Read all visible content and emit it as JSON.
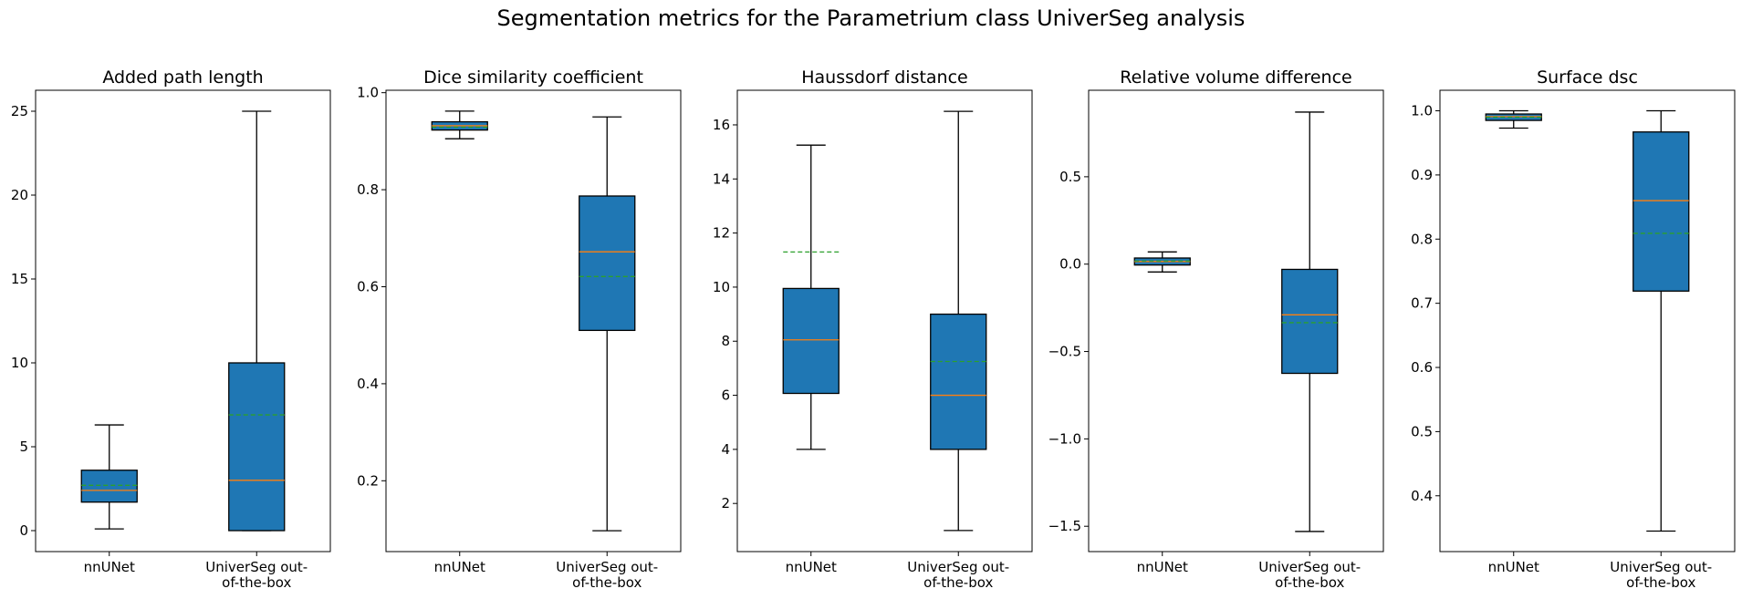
{
  "figure": {
    "title": "Segmentation metrics for the Parametrium class UniverSeg analysis"
  },
  "colors": {
    "box_fill": "#1f77b4",
    "median": "#ff7f0e",
    "mean": "#2ca02c",
    "line": "#000000"
  },
  "chart_data": [
    {
      "type": "box",
      "title": "Added path length",
      "categories": [
        [
          "nnUNet"
        ],
        [
          "UniverSeg out-",
          "of-the-box"
        ]
      ],
      "ylim": [
        -1.25,
        26.25
      ],
      "yticks": [
        0,
        5,
        10,
        15,
        20,
        25
      ],
      "tick_labels": [
        "0",
        "5",
        "10",
        "15",
        "20",
        "25"
      ],
      "grid": false,
      "boxes": [
        {
          "whislo": 0.1,
          "q1": 1.7,
          "med": 2.4,
          "mean": 2.7,
          "q3": 3.6,
          "whishi": 6.3
        },
        {
          "whislo": 0.0,
          "q1": 0.0,
          "med": 3.0,
          "mean": 6.9,
          "q3": 10.0,
          "whishi": 25.0
        }
      ]
    },
    {
      "type": "box",
      "title": "Dice similarity coefficient",
      "categories": [
        [
          "nnUNet"
        ],
        [
          "UniverSeg out-",
          "of-the-box"
        ]
      ],
      "ylim": [
        0.054,
        1.005
      ],
      "yticks": [
        0.2,
        0.4,
        0.6,
        0.8,
        1.0
      ],
      "tick_labels": [
        "0.2",
        "0.4",
        "0.6",
        "0.8",
        "1.0"
      ],
      "grid": false,
      "boxes": [
        {
          "whislo": 0.905,
          "q1": 0.923,
          "med": 0.932,
          "mean": 0.929,
          "q3": 0.94,
          "whishi": 0.962
        },
        {
          "whislo": 0.097,
          "q1": 0.51,
          "med": 0.672,
          "mean": 0.621,
          "q3": 0.787,
          "whishi": 0.95
        }
      ]
    },
    {
      "type": "box",
      "title": "Haussdorf distance",
      "categories": [
        [
          "nnUNet"
        ],
        [
          "UniverSeg out-",
          "of-the-box"
        ]
      ],
      "ylim": [
        0.22,
        17.28
      ],
      "yticks": [
        2,
        4,
        6,
        8,
        10,
        12,
        14,
        16
      ],
      "tick_labels": [
        "2",
        "4",
        "6",
        "8",
        "10",
        "12",
        "14",
        "16"
      ],
      "grid": false,
      "boxes": [
        {
          "whislo": 4.0,
          "q1": 6.07,
          "med": 8.05,
          "mean": 11.3,
          "q3": 9.95,
          "whishi": 15.25
        },
        {
          "whislo": 1.0,
          "q1": 4.0,
          "med": 6.0,
          "mean": 7.25,
          "q3": 9.0,
          "whishi": 16.5
        }
      ]
    },
    {
      "type": "box",
      "title": "Relative volume difference",
      "categories": [
        [
          "nnUNet"
        ],
        [
          "UniverSeg out-",
          "of-the-box"
        ]
      ],
      "ylim": [
        -1.645,
        0.995
      ],
      "yticks": [
        -1.5,
        -1.0,
        -0.5,
        0.0,
        0.5
      ],
      "tick_labels": [
        "−1.5",
        "−1.0",
        "−0.5",
        "0.0",
        "0.5"
      ],
      "grid": false,
      "boxes": [
        {
          "whislo": -0.045,
          "q1": -0.005,
          "med": 0.015,
          "mean": 0.018,
          "q3": 0.035,
          "whishi": 0.07
        },
        {
          "whislo": -1.53,
          "q1": -0.625,
          "med": -0.29,
          "mean": -0.335,
          "q3": -0.03,
          "whishi": 0.87
        }
      ]
    },
    {
      "type": "box",
      "title": "Surface dsc",
      "categories": [
        [
          "nnUNet"
        ],
        [
          "UniverSeg out-",
          "of-the-box"
        ]
      ],
      "ylim": [
        0.313,
        1.032
      ],
      "yticks": [
        0.4,
        0.5,
        0.6,
        0.7,
        0.8,
        0.9,
        1.0
      ],
      "tick_labels": [
        "0.4",
        "0.5",
        "0.6",
        "0.7",
        "0.8",
        "0.9",
        "1.0"
      ],
      "grid": false,
      "boxes": [
        {
          "whislo": 0.973,
          "q1": 0.985,
          "med": 0.991,
          "mean": 0.99,
          "q3": 0.995,
          "whishi": 1.0
        },
        {
          "whislo": 0.345,
          "q1": 0.719,
          "med": 0.86,
          "mean": 0.809,
          "q3": 0.967,
          "whishi": 1.0
        }
      ]
    }
  ]
}
